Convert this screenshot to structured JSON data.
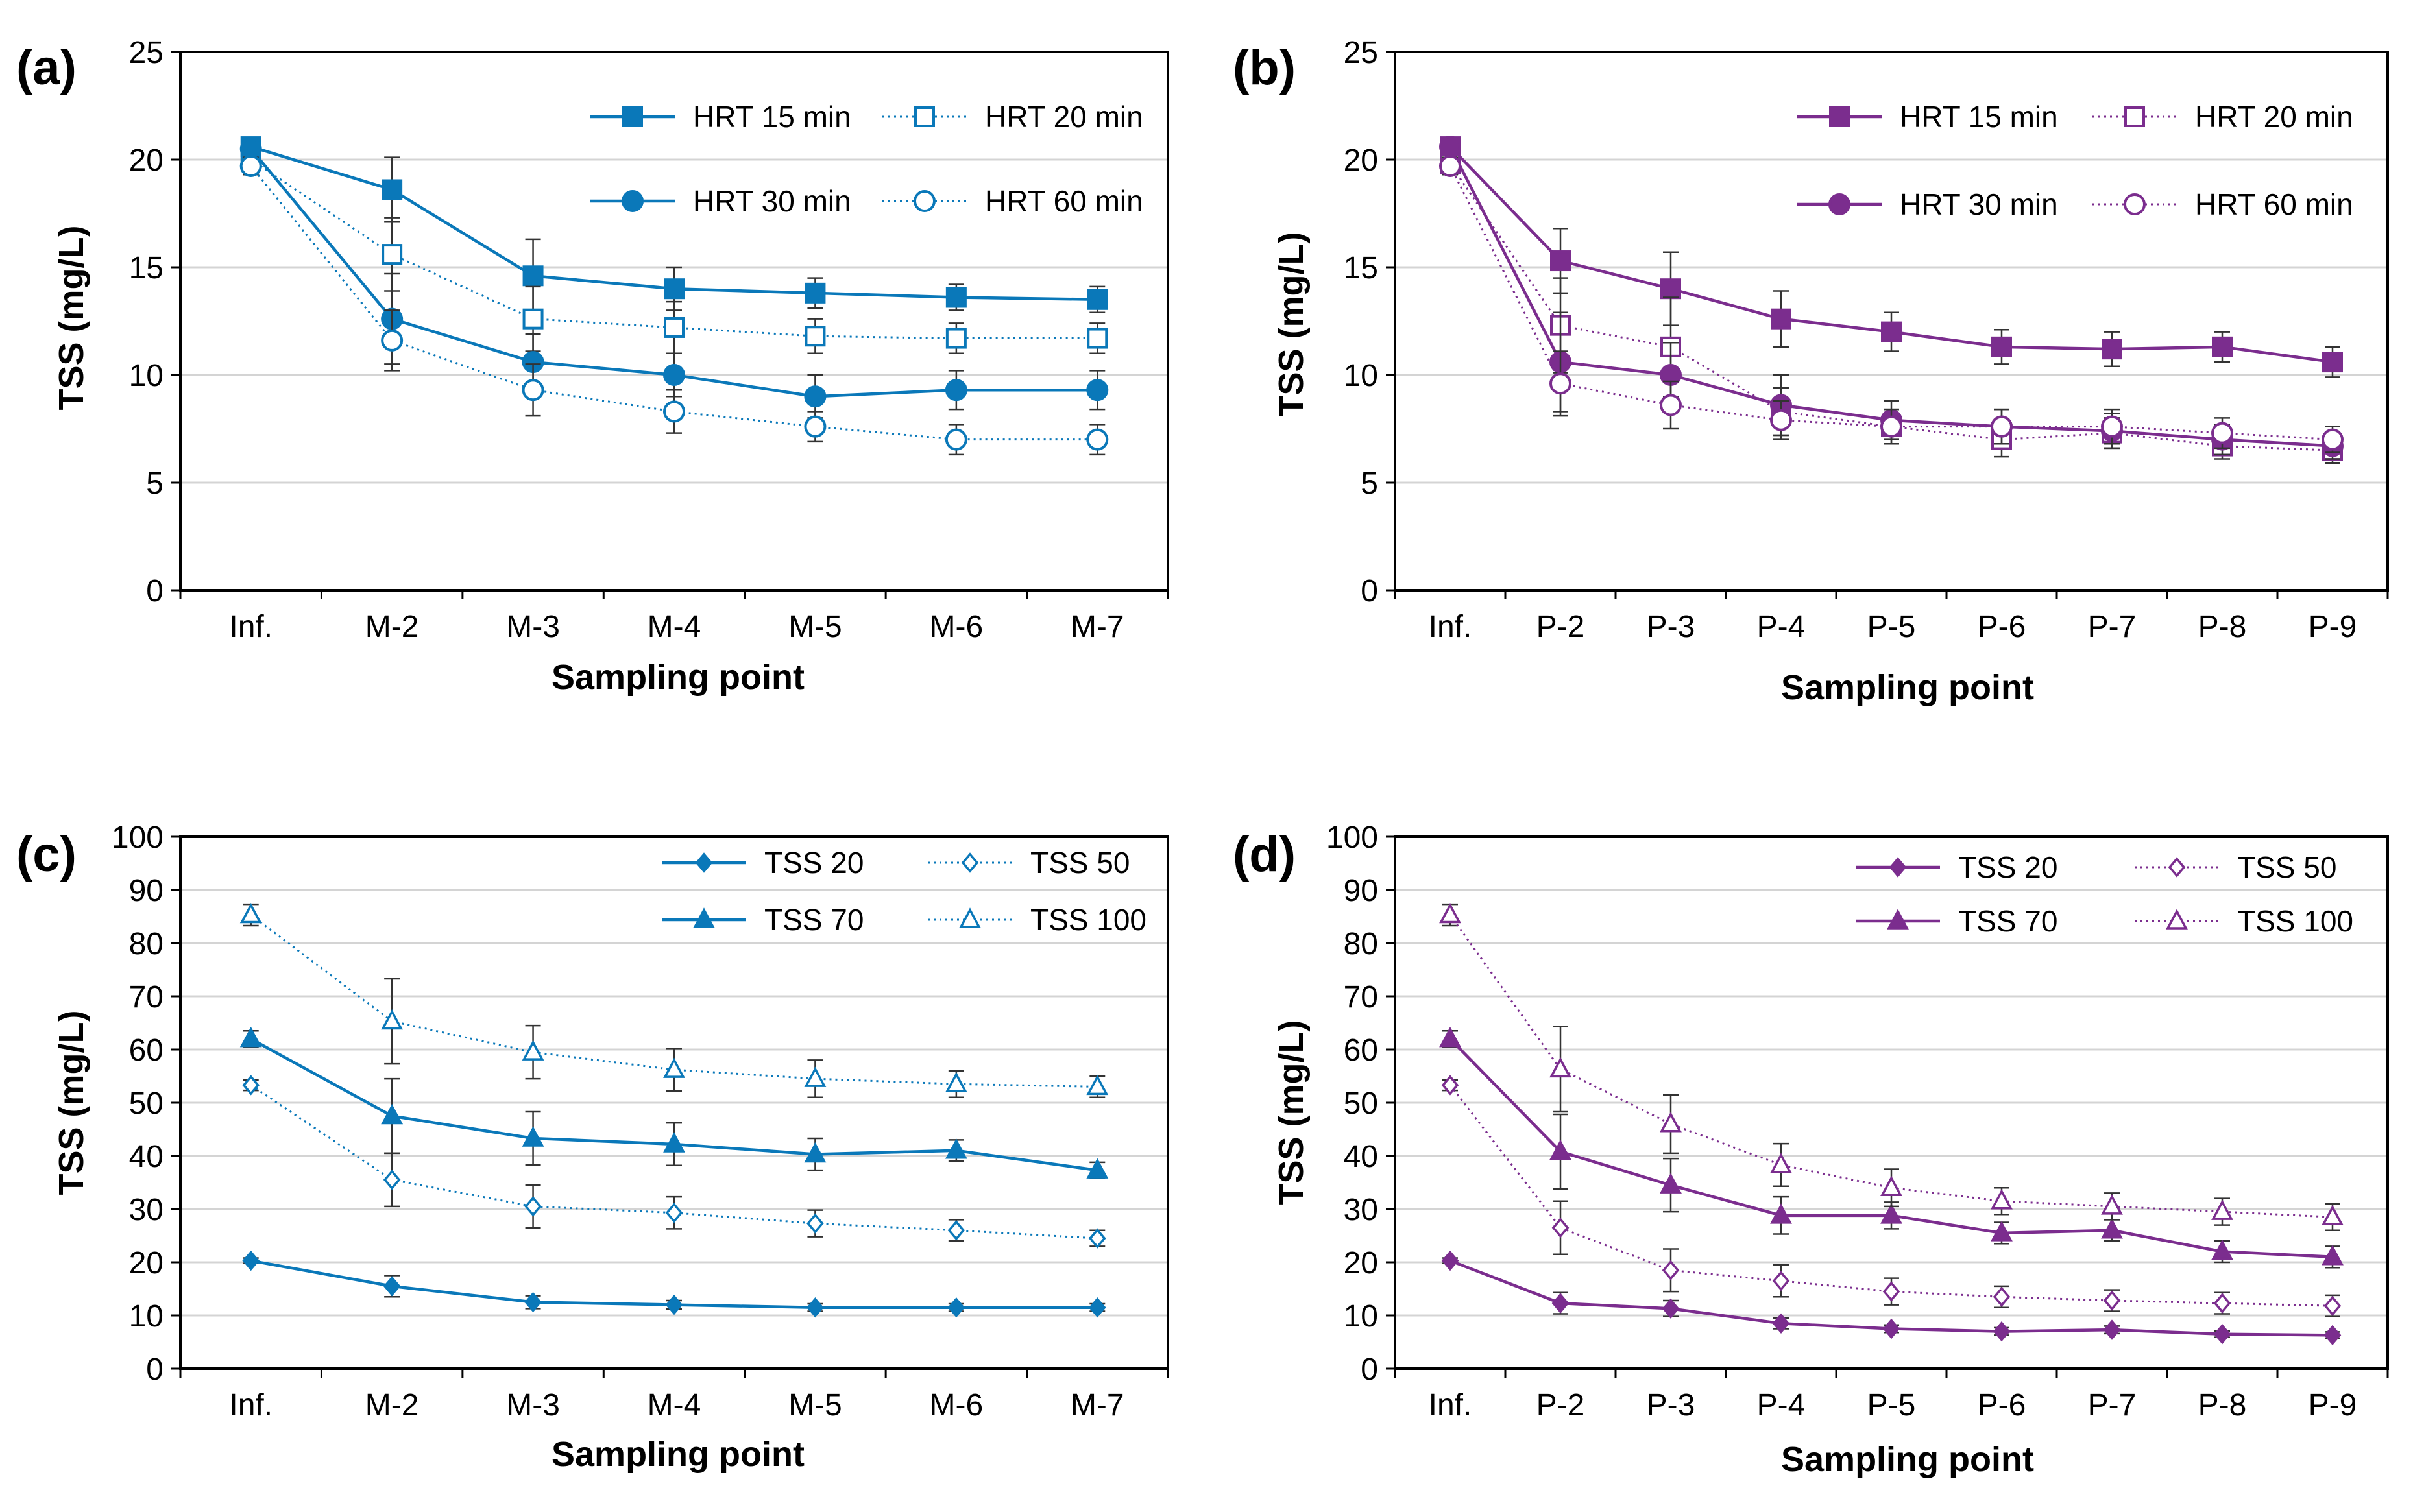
{
  "figure": {
    "colors": {
      "blue": "#0a78b9",
      "purple": "#7b2d8e",
      "grid": "#d4d4d4",
      "axis": "#000000"
    },
    "panels": [
      {
        "id": "a",
        "label": "(a)",
        "chart_data": {
          "type": "line",
          "title": "",
          "xlabel": "Sampling point",
          "ylabel": "TSS (mg/L)",
          "ylim": [
            0,
            25
          ],
          "yticks": [
            0,
            5,
            10,
            15,
            20,
            25
          ],
          "grid": true,
          "legend": "top-right",
          "color": "#0a78b9",
          "categories": [
            "Inf.",
            "M-2",
            "M-3",
            "M-4",
            "M-5",
            "M-6",
            "M-7"
          ],
          "series": [
            {
              "name": "HRT 15 min",
              "marker": "square",
              "filled": true,
              "line": "solid",
              "values": [
                20.6,
                18.6,
                14.6,
                14.0,
                13.8,
                13.6,
                13.5
              ],
              "errors": [
                0.3,
                1.5,
                1.7,
                1.0,
                0.7,
                0.6,
                0.6
              ]
            },
            {
              "name": "HRT 20 min",
              "marker": "square",
              "filled": false,
              "line": "dotted",
              "values": [
                20.0,
                15.6,
                12.6,
                12.2,
                11.8,
                11.7,
                11.7
              ],
              "errors": [
                0.4,
                1.7,
                1.5,
                1.2,
                0.8,
                0.7,
                0.7
              ]
            },
            {
              "name": "HRT 30 min",
              "marker": "circle",
              "filled": true,
              "line": "solid",
              "values": [
                20.5,
                12.6,
                10.6,
                10.0,
                9.0,
                9.3,
                9.3
              ],
              "errors": [
                0.3,
                2.1,
                1.3,
                1.0,
                1.0,
                0.9,
                0.9
              ]
            },
            {
              "name": "HRT 60 min",
              "marker": "circle",
              "filled": false,
              "line": "dotted",
              "values": [
                19.7,
                11.6,
                9.3,
                8.3,
                7.6,
                7.0,
                7.0
              ],
              "errors": [
                0.4,
                1.4,
                1.2,
                1.0,
                0.7,
                0.7,
                0.7
              ]
            }
          ]
        }
      },
      {
        "id": "b",
        "label": "(b)",
        "chart_data": {
          "type": "line",
          "title": "",
          "xlabel": "Sampling point",
          "ylabel": "TSS (mg/L)",
          "ylim": [
            0,
            25
          ],
          "yticks": [
            0,
            5,
            10,
            15,
            20,
            25
          ],
          "grid": true,
          "legend": "top-right",
          "color": "#7b2d8e",
          "categories": [
            "Inf.",
            "P-2",
            "P-3",
            "P-4",
            "P-5",
            "P-6",
            "P-7",
            "P-8",
            "P-9"
          ],
          "series": [
            {
              "name": "HRT 15 min",
              "marker": "square",
              "filled": true,
              "line": "solid",
              "values": [
                20.6,
                15.3,
                14.0,
                12.6,
                12.0,
                11.3,
                11.2,
                11.3,
                10.6
              ],
              "errors": [
                0.3,
                1.5,
                1.7,
                1.3,
                0.9,
                0.8,
                0.8,
                0.7,
                0.7
              ]
            },
            {
              "name": "HRT 20 min",
              "marker": "square",
              "filled": false,
              "line": "dotted",
              "values": [
                19.8,
                12.3,
                11.3,
                8.3,
                7.6,
                7.0,
                7.3,
                6.7,
                6.5
              ],
              "errors": [
                0.4,
                2.2,
                2.3,
                1.1,
                0.8,
                0.8,
                0.7,
                0.6,
                0.6
              ]
            },
            {
              "name": "HRT 30 min",
              "marker": "circle",
              "filled": true,
              "line": "solid",
              "values": [
                20.6,
                10.6,
                10.0,
                8.6,
                7.9,
                7.6,
                7.4,
                7.0,
                6.7
              ],
              "errors": [
                0.3,
                2.3,
                1.5,
                1.4,
                0.9,
                0.8,
                0.8,
                0.7,
                0.6
              ]
            },
            {
              "name": "HRT 60 min",
              "marker": "circle",
              "filled": false,
              "line": "dotted",
              "values": [
                19.7,
                9.6,
                8.6,
                7.9,
                7.6,
                7.6,
                7.6,
                7.3,
                7.0
              ],
              "errors": [
                0.4,
                1.5,
                1.1,
                0.9,
                0.8,
                0.8,
                0.8,
                0.7,
                0.6
              ]
            }
          ]
        }
      },
      {
        "id": "c",
        "label": "(c)",
        "chart_data": {
          "type": "line",
          "title": "",
          "xlabel": "Sampling point",
          "ylabel": "TSS (mg/L)",
          "ylim": [
            0,
            100
          ],
          "yticks": [
            0,
            10,
            20,
            30,
            40,
            50,
            60,
            70,
            80,
            90,
            100
          ],
          "grid": true,
          "legend": "top-right",
          "color": "#0a78b9",
          "categories": [
            "Inf.",
            "M-2",
            "M-3",
            "M-4",
            "M-5",
            "M-6",
            "M-7"
          ],
          "series": [
            {
              "name": "TSS 20",
              "marker": "diamond",
              "filled": true,
              "line": "solid",
              "values": [
                20.3,
                15.5,
                12.5,
                12.0,
                11.5,
                11.5,
                11.5
              ],
              "errors": [
                0.5,
                2.0,
                1.2,
                0.8,
                0.7,
                0.7,
                0.7
              ]
            },
            {
              "name": "TSS 50",
              "marker": "diamond",
              "filled": false,
              "line": "dotted",
              "values": [
                53.3,
                35.5,
                30.5,
                29.3,
                27.3,
                26.0,
                24.5
              ],
              "errors": [
                1.0,
                5.0,
                4.0,
                3.0,
                2.5,
                2.0,
                1.5
              ]
            },
            {
              "name": "TSS 70",
              "marker": "triangle",
              "filled": true,
              "line": "solid",
              "values": [
                62.0,
                47.5,
                43.3,
                42.2,
                40.3,
                41.0,
                37.3
              ],
              "errors": [
                1.5,
                7.0,
                5.0,
                4.0,
                3.0,
                2.0,
                1.5
              ]
            },
            {
              "name": "TSS 100",
              "marker": "triangle",
              "filled": false,
              "line": "dotted",
              "values": [
                85.3,
                65.3,
                59.5,
                56.2,
                54.5,
                53.5,
                53.0
              ],
              "errors": [
                2.0,
                8.0,
                5.0,
                4.0,
                3.5,
                2.5,
                2.0
              ]
            }
          ]
        }
      },
      {
        "id": "d",
        "label": "(d)",
        "chart_data": {
          "type": "line",
          "title": "",
          "xlabel": "Sampling point",
          "ylabel": "TSS (mg/L)",
          "ylim": [
            0,
            100
          ],
          "yticks": [
            0,
            10,
            20,
            30,
            40,
            50,
            60,
            70,
            80,
            90,
            100
          ],
          "grid": true,
          "legend": "top-right",
          "color": "#7b2d8e",
          "categories": [
            "Inf.",
            "P-2",
            "P-3",
            "P-4",
            "P-5",
            "P-6",
            "P-7",
            "P-8",
            "P-9"
          ],
          "series": [
            {
              "name": "TSS 20",
              "marker": "diamond",
              "filled": true,
              "line": "solid",
              "values": [
                20.3,
                12.3,
                11.3,
                8.5,
                7.5,
                7.0,
                7.3,
                6.5,
                6.3
              ],
              "errors": [
                0.5,
                2.0,
                1.5,
                1.0,
                0.7,
                0.7,
                0.7,
                0.6,
                0.6
              ]
            },
            {
              "name": "TSS 50",
              "marker": "diamond",
              "filled": false,
              "line": "dotted",
              "values": [
                53.3,
                26.5,
                18.5,
                16.5,
                14.5,
                13.5,
                12.8,
                12.3,
                11.8
              ],
              "errors": [
                1.0,
                5.0,
                4.0,
                3.0,
                2.5,
                2.0,
                2.0,
                2.0,
                2.0
              ]
            },
            {
              "name": "TSS 70",
              "marker": "triangle",
              "filled": true,
              "line": "solid",
              "values": [
                62.0,
                40.8,
                34.5,
                28.8,
                28.8,
                25.5,
                26.0,
                22.0,
                21.0
              ],
              "errors": [
                1.5,
                7.0,
                5.0,
                3.5,
                2.5,
                2.0,
                2.0,
                2.0,
                2.0
              ]
            },
            {
              "name": "TSS 100",
              "marker": "triangle",
              "filled": false,
              "line": "dotted",
              "values": [
                85.3,
                56.3,
                46.0,
                38.3,
                34.0,
                31.5,
                30.5,
                29.5,
                28.5
              ],
              "errors": [
                2.0,
                8.0,
                5.5,
                4.0,
                3.5,
                2.5,
                2.5,
                2.5,
                2.5
              ]
            }
          ]
        }
      }
    ]
  }
}
